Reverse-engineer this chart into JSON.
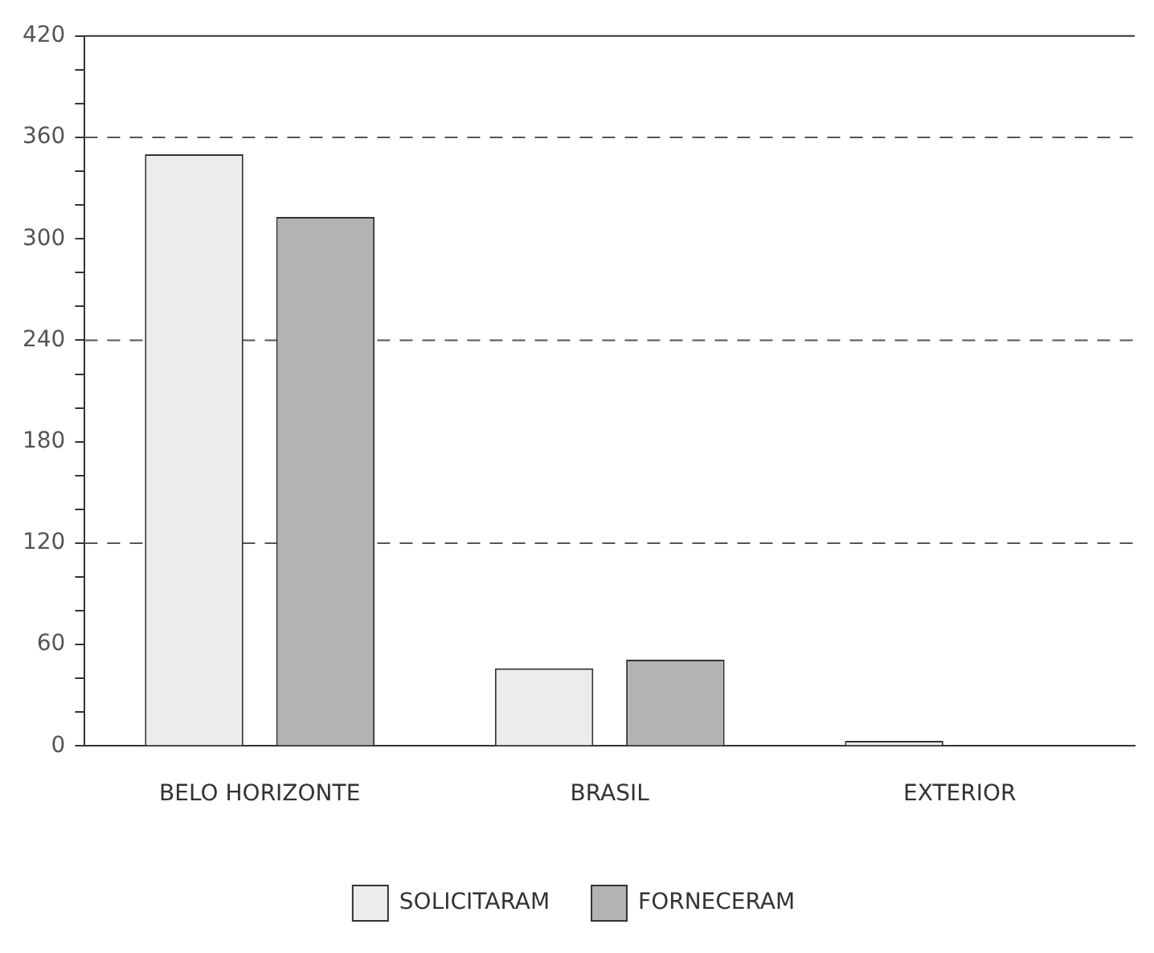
{
  "chart_data": {
    "type": "bar",
    "categories": [
      "BELO HORIZONTE",
      "BRASIL",
      "EXTERIOR"
    ],
    "series": [
      {
        "name": "SOLICITARAM",
        "color": "#ececec",
        "values": [
          350,
          46,
          3
        ]
      },
      {
        "name": "FORNECERAM",
        "color": "#b3b3b3",
        "values": [
          313,
          51,
          null
        ]
      }
    ],
    "ylim": [
      0,
      420
    ],
    "yticks": [
      0,
      {
        "value": 20,
        "label": null
      },
      {
        "value": 40,
        "label": null
      },
      60,
      {
        "value": 80,
        "label": null
      },
      {
        "value": 100,
        "label": null
      },
      120,
      {
        "value": 140,
        "label": null
      },
      {
        "value": 160,
        "label": null
      },
      180,
      {
        "value": 200,
        "label": null
      },
      {
        "value": 220,
        "label": null
      },
      240,
      {
        "value": 260,
        "label": null
      },
      {
        "value": 280,
        "label": null
      },
      300,
      {
        "value": 320,
        "label": null
      },
      {
        "value": 340,
        "label": null
      },
      360,
      {
        "value": 380,
        "label": null
      },
      {
        "value": 400,
        "label": null
      },
      420
    ],
    "ref_lines": [
      {
        "axis": "y",
        "value": 120,
        "line_style": "dashed",
        "color": "#555555"
      },
      {
        "axis": "y",
        "value": 240,
        "line_style": "dashed",
        "color": "#555555"
      },
      {
        "axis": "y",
        "value": 360,
        "line_style": "dashed",
        "color": "#555555"
      }
    ],
    "grid": false,
    "legend": "bottom"
  }
}
